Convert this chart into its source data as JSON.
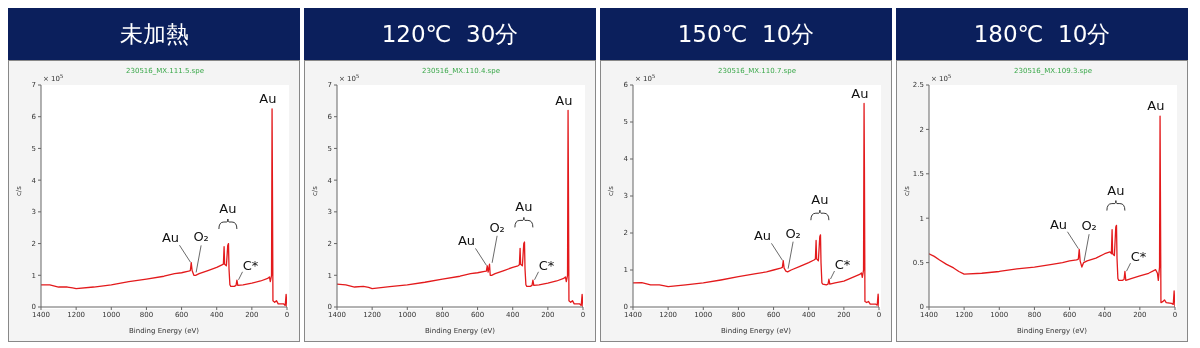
{
  "chart_data": [
    {
      "type": "line",
      "title": "未加熱",
      "subtitle": "230516_MX.111.5.spe",
      "xlabel": "Binding Energy (eV)",
      "ylabel": "c/s",
      "xlim": [
        1400,
        0
      ],
      "xticks": [
        1400,
        1200,
        1000,
        800,
        600,
        400,
        200,
        0
      ],
      "ylim": [
        0,
        7
      ],
      "yticks": [
        0,
        1,
        2,
        3,
        4,
        5,
        6,
        7
      ],
      "annotations": [
        "× 10$^{5}$",
        {
          "text": "Au",
          "x": 545,
          "y": 1.4
        },
        {
          "text": "O₂",
          "x": 530,
          "y": 1.05
        },
        {
          "text": "Au",
          "x": 345,
          "y": 2.0
        },
        {
          "text": "C*",
          "x": 285,
          "y": 0.85
        },
        {
          "text": "Au",
          "x": 85,
          "y": 6.25
        }
      ],
      "series": [
        {
          "color": "#e31a1c",
          "x": [
            1400,
            1350,
            1300,
            1250,
            1220,
            1200,
            1100,
            1000,
            900,
            800,
            700,
            640,
            600,
            560,
            550,
            545,
            540,
            530,
            520,
            500,
            450,
            400,
            370,
            362,
            358,
            355,
            345,
            337,
            333,
            330,
            325,
            320,
            300,
            290,
            285,
            280,
            250,
            200,
            150,
            110,
            100,
            95,
            88,
            85,
            83,
            80,
            70,
            60,
            50,
            20,
            10,
            5,
            0
          ],
          "values": [
            0.7,
            0.7,
            0.63,
            0.63,
            0.6,
            0.58,
            0.63,
            0.7,
            0.8,
            0.88,
            0.97,
            1.05,
            1.08,
            1.13,
            1.15,
            1.4,
            1.15,
            1.0,
            1.0,
            1.05,
            1.15,
            1.25,
            1.33,
            1.35,
            1.9,
            1.35,
            1.3,
            1.95,
            2.0,
            1.2,
            0.7,
            0.65,
            0.65,
            0.68,
            0.85,
            0.68,
            0.7,
            0.75,
            0.82,
            0.9,
            0.95,
            0.8,
            1.0,
            6.25,
            4.0,
            0.2,
            0.15,
            0.2,
            0.1,
            0.1,
            0.05,
            0.4,
            0
          ]
        }
      ]
    },
    {
      "type": "line",
      "title": "120℃  30分",
      "subtitle": "230516_MX.110.4.spe",
      "xlabel": "Binding Energy (eV)",
      "ylabel": "c/s",
      "xlim": [
        1400,
        0
      ],
      "xticks": [
        1400,
        1200,
        1000,
        800,
        600,
        400,
        200,
        0
      ],
      "ylim": [
        0,
        7
      ],
      "yticks": [
        0,
        1,
        2,
        3,
        4,
        5,
        6,
        7
      ],
      "annotations": [
        "× 10$^{5}$",
        {
          "text": "Au",
          "x": 545,
          "y": 1.3
        },
        {
          "text": "O₂",
          "x": 530,
          "y": 1.35
        },
        {
          "text": "Au",
          "x": 345,
          "y": 2.05
        },
        {
          "text": "C*",
          "x": 285,
          "y": 0.85
        },
        {
          "text": "Au",
          "x": 85,
          "y": 6.2
        }
      ],
      "series": [
        {
          "color": "#e31a1c",
          "x": [
            1400,
            1350,
            1300,
            1250,
            1220,
            1200,
            1100,
            1000,
            900,
            800,
            700,
            640,
            600,
            560,
            550,
            545,
            540,
            532,
            528,
            520,
            500,
            450,
            400,
            370,
            362,
            358,
            355,
            345,
            337,
            333,
            330,
            325,
            320,
            300,
            290,
            285,
            280,
            250,
            200,
            150,
            110,
            100,
            95,
            88,
            85,
            83,
            80,
            70,
            60,
            50,
            20,
            10,
            5,
            0
          ],
          "values": [
            0.72,
            0.7,
            0.63,
            0.65,
            0.62,
            0.58,
            0.64,
            0.7,
            0.78,
            0.88,
            0.97,
            1.05,
            1.08,
            1.12,
            1.13,
            1.3,
            1.1,
            1.35,
            1.0,
            1.0,
            1.05,
            1.15,
            1.25,
            1.3,
            1.33,
            1.85,
            1.35,
            1.3,
            2.0,
            2.05,
            1.2,
            0.7,
            0.65,
            0.65,
            0.68,
            0.85,
            0.68,
            0.7,
            0.75,
            0.82,
            0.9,
            0.95,
            0.8,
            1.0,
            6.2,
            4.0,
            0.2,
            0.15,
            0.2,
            0.1,
            0.1,
            0.05,
            0.4,
            0
          ]
        }
      ]
    },
    {
      "type": "line",
      "title": "150℃  10分",
      "subtitle": "230516_MX.110.7.spe",
      "xlabel": "Binding Energy (eV)",
      "ylabel": "c/s",
      "xlim": [
        1400,
        0
      ],
      "xticks": [
        1400,
        1200,
        1000,
        800,
        600,
        400,
        200,
        0
      ],
      "ylim": [
        0,
        6
      ],
      "yticks": [
        0,
        1,
        2,
        3,
        4,
        5,
        6
      ],
      "annotations": [
        "× 10$^{5}$",
        {
          "text": "Au",
          "x": 545,
          "y": 1.25
        },
        {
          "text": "O₂",
          "x": 530,
          "y": 1.0
        },
        {
          "text": "Au",
          "x": 345,
          "y": 1.95
        },
        {
          "text": "C*",
          "x": 285,
          "y": 0.75
        },
        {
          "text": "Au",
          "x": 85,
          "y": 5.5
        }
      ],
      "series": [
        {
          "color": "#e31a1c",
          "x": [
            1400,
            1350,
            1300,
            1250,
            1220,
            1200,
            1100,
            1000,
            900,
            800,
            700,
            640,
            600,
            560,
            550,
            545,
            540,
            530,
            520,
            500,
            450,
            400,
            370,
            362,
            358,
            355,
            345,
            337,
            333,
            330,
            325,
            320,
            300,
            290,
            285,
            280,
            250,
            200,
            150,
            110,
            100,
            95,
            88,
            85,
            83,
            80,
            70,
            60,
            50,
            20,
            10,
            5,
            0
          ],
          "values": [
            0.65,
            0.66,
            0.6,
            0.6,
            0.57,
            0.55,
            0.6,
            0.65,
            0.73,
            0.82,
            0.9,
            0.95,
            1.0,
            1.05,
            1.07,
            1.25,
            1.05,
            0.97,
            0.95,
            1.0,
            1.1,
            1.2,
            1.27,
            1.3,
            1.8,
            1.3,
            1.25,
            1.9,
            1.95,
            1.2,
            0.65,
            0.62,
            0.6,
            0.62,
            0.75,
            0.62,
            0.65,
            0.7,
            0.8,
            0.88,
            0.92,
            0.8,
            1.0,
            5.5,
            3.8,
            0.15,
            0.12,
            0.15,
            0.08,
            0.08,
            0.05,
            0.35,
            0
          ]
        }
      ]
    },
    {
      "type": "line",
      "title": "180℃  10分",
      "subtitle": "230516_MX.109.3.spe",
      "xlabel": "Binding Energy (eV)",
      "ylabel": "c/s",
      "xlim": [
        1400,
        0
      ],
      "xticks": [
        1400,
        1200,
        1000,
        800,
        600,
        400,
        200,
        0
      ],
      "ylim": [
        0,
        2.5
      ],
      "yticks": [
        0,
        0.5,
        1,
        1.5,
        2,
        2.5
      ],
      "annotations": [
        "× 10$^{5}$",
        {
          "text": "Au",
          "x": 545,
          "y": 0.65
        },
        {
          "text": "O₂",
          "x": 530,
          "y": 0.5
        },
        {
          "text": "Au",
          "x": 345,
          "y": 0.92
        },
        {
          "text": "C*",
          "x": 285,
          "y": 0.4
        },
        {
          "text": "Au",
          "x": 85,
          "y": 2.15
        }
      ],
      "series": [
        {
          "color": "#e31a1c",
          "x": [
            1400,
            1370,
            1340,
            1300,
            1260,
            1230,
            1200,
            1100,
            1000,
            900,
            800,
            700,
            640,
            600,
            560,
            550,
            545,
            540,
            530,
            520,
            500,
            450,
            400,
            370,
            362,
            358,
            355,
            345,
            337,
            333,
            330,
            325,
            320,
            300,
            290,
            285,
            280,
            250,
            200,
            150,
            110,
            100,
            95,
            88,
            85,
            83,
            80,
            70,
            60,
            50,
            20,
            10,
            5,
            0
          ],
          "values": [
            0.6,
            0.57,
            0.53,
            0.48,
            0.44,
            0.4,
            0.37,
            0.38,
            0.4,
            0.43,
            0.45,
            0.48,
            0.5,
            0.52,
            0.53,
            0.54,
            0.65,
            0.52,
            0.45,
            0.5,
            0.52,
            0.55,
            0.6,
            0.62,
            0.6,
            0.87,
            0.6,
            0.58,
            0.9,
            0.92,
            0.55,
            0.32,
            0.3,
            0.3,
            0.31,
            0.4,
            0.3,
            0.32,
            0.35,
            0.38,
            0.42,
            0.38,
            0.3,
            0.45,
            2.15,
            1.3,
            0.05,
            0.06,
            0.08,
            0.05,
            0.04,
            0.03,
            0.18,
            0
          ]
        }
      ]
    }
  ]
}
